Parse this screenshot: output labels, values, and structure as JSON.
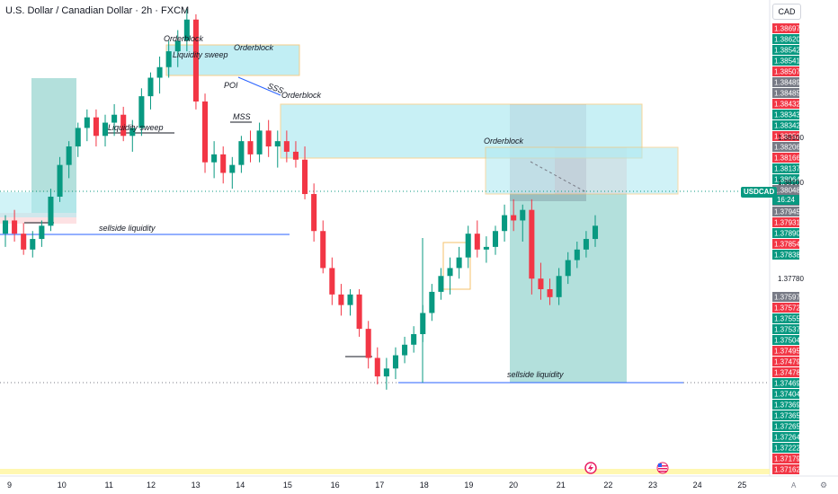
{
  "header": {
    "title": "U.S. Dollar / Canadian Dollar · 2h · FXCM",
    "currency": "CAD",
    "symbol": "USDCAD",
    "countdown": "16:24"
  },
  "colors": {
    "up": "#089981",
    "down": "#f23645",
    "zone_fill": "#b2ebf2",
    "zone_border": "#f5c26b",
    "line": "#2962ff"
  },
  "chart_data": {
    "type": "candlestick",
    "ylim": [
      1.3712,
      1.3888
    ],
    "x_tick_labels": [
      "9",
      "10",
      "11",
      "12",
      "13",
      "14",
      "15",
      "16",
      "17",
      "18",
      "19",
      "20",
      "21",
      "22",
      "23",
      "24",
      "25"
    ],
    "x_tick_fractions": [
      0.0,
      0.09,
      0.175,
      0.25,
      0.33,
      0.41,
      0.495,
      0.58,
      0.66,
      0.74,
      0.82,
      0.9,
      0.985,
      1.07,
      1.15,
      1.23,
      1.31
    ],
    "price_labels": [
      {
        "v": "1.38697",
        "c": "#f23645"
      },
      {
        "v": "1.38620",
        "c": "#089981"
      },
      {
        "v": "1.38542",
        "c": "#089981"
      },
      {
        "v": "1.38541",
        "c": "#089981"
      },
      {
        "v": "1.38507",
        "c": "#f23645"
      },
      {
        "v": "1.38489",
        "c": "#787b86"
      },
      {
        "v": "1.38485",
        "c": "#787b86"
      },
      {
        "v": "1.38432",
        "c": "#f23645"
      },
      {
        "v": "1.38343",
        "c": "#089981"
      },
      {
        "v": "1.38342",
        "c": "#089981"
      },
      {
        "v": "1.38252",
        "c": "#f23645"
      },
      {
        "v": "1.38206",
        "c": "#787b86"
      },
      {
        "v": "1.38166",
        "c": "#f23645"
      },
      {
        "v": "1.38137",
        "c": "#089981"
      },
      {
        "v": "1.38064",
        "c": "#089981"
      },
      {
        "v": "1.38048",
        "c": "#787b86"
      },
      {
        "v": "1.37980",
        "c": "#787b86"
      },
      {
        "v": "1.37945",
        "c": "#787b86"
      },
      {
        "v": "1.37931",
        "c": "#f23645"
      },
      {
        "v": "1.37890",
        "c": "#089981"
      },
      {
        "v": "1.37854",
        "c": "#f23645"
      },
      {
        "v": "1.37838",
        "c": "#089981"
      },
      {
        "v": "1.37597",
        "c": "#787b86"
      },
      {
        "v": "1.37572",
        "c": "#f23645"
      },
      {
        "v": "1.37555",
        "c": "#089981"
      },
      {
        "v": "1.37537",
        "c": "#089981"
      },
      {
        "v": "1.37504",
        "c": "#089981"
      },
      {
        "v": "1.37495",
        "c": "#f23645"
      },
      {
        "v": "1.37479",
        "c": "#f23645"
      },
      {
        "v": "1.37478",
        "c": "#f23645"
      },
      {
        "v": "1.37469",
        "c": "#089981"
      },
      {
        "v": "1.37404",
        "c": "#089981"
      },
      {
        "v": "1.37369",
        "c": "#089981"
      },
      {
        "v": "1.37365",
        "c": "#089981"
      },
      {
        "v": "1.37265",
        "c": "#089981"
      },
      {
        "v": "1.37264",
        "c": "#089981"
      },
      {
        "v": "1.37222",
        "c": "#089981"
      },
      {
        "v": "1.37179",
        "c": "#f23645"
      },
      {
        "v": "1.37162",
        "c": "#f23645"
      }
    ],
    "plain_price_labels": [
      "1.38100",
      "1.38100",
      "1.37780"
    ],
    "annotations": [
      "Orderblock",
      "Orderblock",
      "Liquidity sweep",
      "POI",
      "SSS",
      "Orderblock",
      "MSS",
      "Liquidity sweep",
      "sellside liquidity",
      "Orderblock",
      "sellside liquidity"
    ],
    "candles": [
      [
        1.3803,
        1.381,
        1.3798,
        1.3808
      ],
      [
        1.3808,
        1.3812,
        1.38,
        1.3803
      ],
      [
        1.3803,
        1.3807,
        1.3795,
        1.3797
      ],
      [
        1.3797,
        1.3804,
        1.3794,
        1.3801
      ],
      [
        1.3801,
        1.3808,
        1.3798,
        1.3806
      ],
      [
        1.3806,
        1.382,
        1.3804,
        1.3817
      ],
      [
        1.3817,
        1.3832,
        1.3815,
        1.3829
      ],
      [
        1.3829,
        1.3838,
        1.3824,
        1.3836
      ],
      [
        1.3836,
        1.3845,
        1.3832,
        1.3843
      ],
      [
        1.3843,
        1.385,
        1.3838,
        1.3847
      ],
      [
        1.3847,
        1.385,
        1.3836,
        1.384
      ],
      [
        1.384,
        1.3848,
        1.3836,
        1.3845
      ],
      [
        1.3845,
        1.3852,
        1.384,
        1.3848
      ],
      [
        1.3848,
        1.3851,
        1.3838,
        1.384
      ],
      [
        1.384,
        1.3846,
        1.3834,
        1.3843
      ],
      [
        1.3843,
        1.3858,
        1.384,
        1.3855
      ],
      [
        1.3855,
        1.3864,
        1.385,
        1.3862
      ],
      [
        1.3862,
        1.387,
        1.3856,
        1.3866
      ],
      [
        1.3866,
        1.3876,
        1.3862,
        1.3872
      ],
      [
        1.3872,
        1.388,
        1.3866,
        1.3876
      ],
      [
        1.3876,
        1.3888,
        1.3872,
        1.3884
      ],
      [
        1.3884,
        1.3886,
        1.385,
        1.3853
      ],
      [
        1.3853,
        1.3856,
        1.3826,
        1.383
      ],
      [
        1.383,
        1.3838,
        1.3824,
        1.3833
      ],
      [
        1.3833,
        1.3836,
        1.3822,
        1.3826
      ],
      [
        1.3826,
        1.3832,
        1.382,
        1.3829
      ],
      [
        1.3829,
        1.384,
        1.3826,
        1.3838
      ],
      [
        1.3838,
        1.3842,
        1.383,
        1.3833
      ],
      [
        1.3833,
        1.3845,
        1.383,
        1.3842
      ],
      [
        1.3842,
        1.3846,
        1.3832,
        1.3836
      ],
      [
        1.3836,
        1.3842,
        1.3828,
        1.3838
      ],
      [
        1.3838,
        1.3842,
        1.383,
        1.3834
      ],
      [
        1.3834,
        1.3838,
        1.3828,
        1.3831
      ],
      [
        1.3831,
        1.3836,
        1.3816,
        1.3818
      ],
      [
        1.3818,
        1.3822,
        1.38,
        1.3804
      ],
      [
        1.3804,
        1.3808,
        1.3788,
        1.379
      ],
      [
        1.379,
        1.3794,
        1.3776,
        1.378
      ],
      [
        1.378,
        1.3784,
        1.3772,
        1.3776
      ],
      [
        1.3776,
        1.3782,
        1.3772,
        1.378
      ],
      [
        1.378,
        1.3782,
        1.3764,
        1.3767
      ],
      [
        1.3767,
        1.377,
        1.3752,
        1.3756
      ],
      [
        1.3756,
        1.376,
        1.3746,
        1.3749
      ],
      [
        1.3749,
        1.3756,
        1.3744,
        1.3752
      ],
      [
        1.3752,
        1.376,
        1.3748,
        1.3757
      ],
      [
        1.3757,
        1.3764,
        1.3754,
        1.3761
      ],
      [
        1.3761,
        1.3768,
        1.3758,
        1.3765
      ],
      [
        1.3765,
        1.3776,
        1.3762,
        1.3773
      ],
      [
        1.3773,
        1.3784,
        1.377,
        1.3781
      ],
      [
        1.3781,
        1.379,
        1.3778,
        1.3787
      ],
      [
        1.3787,
        1.3794,
        1.378,
        1.379
      ],
      [
        1.379,
        1.3798,
        1.3786,
        1.3794
      ],
      [
        1.3794,
        1.3806,
        1.379,
        1.3803
      ],
      [
        1.3803,
        1.3808,
        1.3794,
        1.3797
      ],
      [
        1.3797,
        1.3802,
        1.3792,
        1.3798
      ],
      [
        1.3798,
        1.3806,
        1.3795,
        1.3804
      ],
      [
        1.3804,
        1.3814,
        1.38,
        1.381
      ],
      [
        1.381,
        1.3816,
        1.3804,
        1.3808
      ],
      [
        1.3808,
        1.3814,
        1.38,
        1.3812
      ],
      [
        1.3812,
        1.3816,
        1.378,
        1.3786
      ],
      [
        1.3786,
        1.3792,
        1.3778,
        1.3782
      ],
      [
        1.3782,
        1.3786,
        1.3776,
        1.3779
      ],
      [
        1.3779,
        1.379,
        1.3776,
        1.3787
      ],
      [
        1.3787,
        1.3796,
        1.3784,
        1.3793
      ],
      [
        1.3793,
        1.38,
        1.379,
        1.3797
      ],
      [
        1.3797,
        1.3804,
        1.3794,
        1.3801
      ],
      [
        1.3801,
        1.381,
        1.3798,
        1.3806
      ]
    ]
  }
}
